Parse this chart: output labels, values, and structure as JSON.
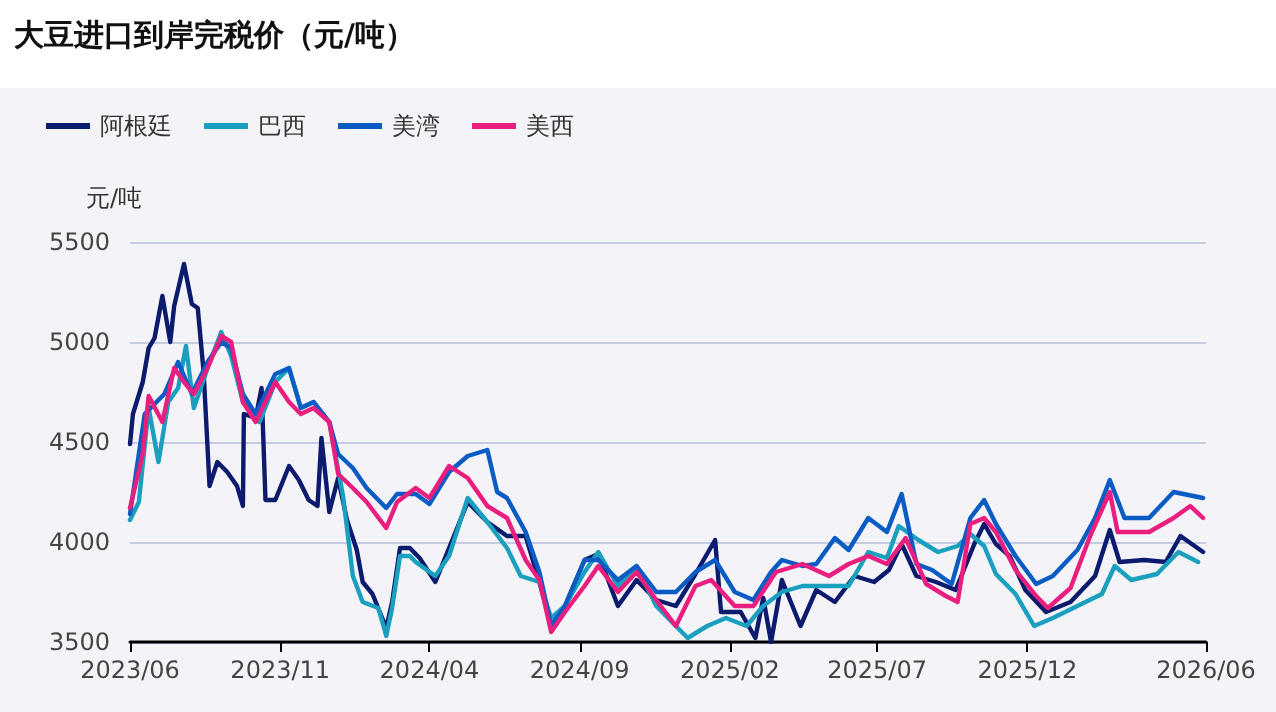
{
  "chart_data": {
    "type": "line",
    "title": "大豆进口到岸完税价（元/吨）",
    "ylabel": "元/吨",
    "xlim": [
      "2023-06-01",
      "2026-06-01"
    ],
    "xticks": [
      {
        "value": "2023-06-01",
        "label": "2023/06"
      },
      {
        "value": "2023-11-01",
        "label": "2023/11"
      },
      {
        "value": "2024-04-01",
        "label": "2024/04"
      },
      {
        "value": "2024-09-01",
        "label": "2024/09"
      },
      {
        "value": "2025-02-01",
        "label": "2025/02"
      },
      {
        "value": "2025-07-01",
        "label": "2025/07"
      },
      {
        "value": "2025-12-01",
        "label": "2025/12"
      },
      {
        "value": "2026-06-01",
        "label": "2026/06"
      }
    ],
    "ylim": [
      3500,
      5500
    ],
    "yticks": [
      3500,
      4000,
      4500,
      5000,
      5500
    ],
    "grid": "y",
    "legend": "top left",
    "marker": "none",
    "series": [
      {
        "name": "阿根廷",
        "color": "#0d1b6e",
        "x": [
          "2023-06-01",
          "2023-06-04",
          "2023-06-14",
          "2023-06-20",
          "2023-06-26",
          "2023-07-04",
          "2023-07-12",
          "2023-07-16",
          "2023-07-26",
          "2023-08-03",
          "2023-08-09",
          "2023-08-15",
          "2023-08-21",
          "2023-08-29",
          "2023-09-08",
          "2023-09-18",
          "2023-09-24",
          "2023-09-25",
          "2023-10-07",
          "2023-10-13",
          "2023-10-17",
          "2023-10-27",
          "2023-11-10",
          "2023-11-20",
          "2023-11-30",
          "2023-12-09",
          "2023-12-13",
          "2023-12-21",
          "2023-12-30",
          "2024-01-08",
          "2024-01-18",
          "2024-01-24",
          "2024-02-03",
          "2024-02-17",
          "2024-02-23",
          "2024-03-02",
          "2024-03-12",
          "2024-03-22",
          "2024-04-07",
          "2024-04-21",
          "2024-05-10",
          "2024-05-30",
          "2024-06-19",
          "2024-07-08",
          "2024-07-22",
          "2024-08-03",
          "2024-08-17",
          "2024-09-06",
          "2024-09-20",
          "2024-10-10",
          "2024-10-29",
          "2024-11-18",
          "2024-12-08",
          "2024-12-28",
          "2025-01-17",
          "2025-01-23",
          "2025-02-12",
          "2025-02-27",
          "2025-03-07",
          "2025-03-15",
          "2025-03-26",
          "2025-04-14",
          "2025-04-30",
          "2025-05-19",
          "2025-06-08",
          "2025-06-28",
          "2025-07-13",
          "2025-07-26",
          "2025-08-10",
          "2025-08-30",
          "2025-09-19",
          "2025-10-08",
          "2025-10-18",
          "2025-10-30",
          "2025-11-13",
          "2025-11-29",
          "2025-12-20",
          "2026-01-14",
          "2026-02-08",
          "2026-02-23",
          "2026-03-05",
          "2026-03-30",
          "2026-04-21",
          "2026-05-06",
          "2026-05-29"
        ],
        "values": [
          4490,
          4640,
          4800,
          4970,
          5020,
          5230,
          5000,
          5180,
          5390,
          5190,
          5170,
          4850,
          4280,
          4400,
          4350,
          4280,
          4180,
          4640,
          4620,
          4770,
          4210,
          4210,
          4380,
          4310,
          4210,
          4180,
          4520,
          4150,
          4320,
          4110,
          3960,
          3800,
          3740,
          3570,
          3700,
          3970,
          3970,
          3920,
          3800,
          3970,
          4200,
          4100,
          4030,
          4030,
          3800,
          3580,
          3680,
          3910,
          3940,
          3680,
          3810,
          3710,
          3680,
          3840,
          4010,
          3650,
          3650,
          3520,
          3720,
          3500,
          3810,
          3580,
          3760,
          3700,
          3830,
          3800,
          3860,
          3990,
          3830,
          3800,
          3760,
          3990,
          4090,
          3990,
          3930,
          3760,
          3650,
          3700,
          3830,
          4060,
          3900,
          3910,
          3900,
          4030,
          3950
        ]
      },
      {
        "name": "巴西",
        "color": "#1a9fbf",
        "x": [
          "2023-06-01",
          "2023-06-10",
          "2023-06-20",
          "2023-06-30",
          "2023-07-10",
          "2023-07-20",
          "2023-07-28",
          "2023-08-05",
          "2023-08-19",
          "2023-09-02",
          "2023-09-12",
          "2023-09-24",
          "2023-10-11",
          "2023-10-27",
          "2023-11-10",
          "2023-11-22",
          "2023-12-05",
          "2023-12-21",
          "2024-01-04",
          "2024-01-14",
          "2024-01-24",
          "2024-02-09",
          "2024-02-17",
          "2024-02-23",
          "2024-03-02",
          "2024-03-12",
          "2024-03-18",
          "2024-04-07",
          "2024-04-21",
          "2024-05-10",
          "2024-05-30",
          "2024-06-19",
          "2024-07-03",
          "2024-07-22",
          "2024-08-03",
          "2024-08-17",
          "2024-09-06",
          "2024-09-20",
          "2024-10-10",
          "2024-10-29",
          "2024-11-18",
          "2024-12-08",
          "2024-12-20",
          "2025-01-09",
          "2025-01-28",
          "2025-02-18",
          "2025-03-07",
          "2025-03-26",
          "2025-04-16",
          "2025-05-13",
          "2025-06-02",
          "2025-06-22",
          "2025-07-11",
          "2025-07-23",
          "2025-08-12",
          "2025-09-01",
          "2025-09-21",
          "2025-10-04",
          "2025-10-18",
          "2025-10-30",
          "2025-11-19",
          "2025-12-08",
          "2025-12-27",
          "2026-01-21",
          "2026-02-15",
          "2026-02-28",
          "2026-03-17",
          "2026-04-12",
          "2026-05-04",
          "2026-05-24"
        ],
        "values": [
          4110,
          4200,
          4670,
          4400,
          4700,
          4770,
          4980,
          4670,
          4870,
          5050,
          4930,
          4700,
          4600,
          4800,
          4870,
          4670,
          4700,
          4600,
          4230,
          3830,
          3700,
          3670,
          3530,
          3670,
          3930,
          3930,
          3900,
          3830,
          3930,
          4220,
          4100,
          3970,
          3830,
          3800,
          3620,
          3680,
          3850,
          3950,
          3780,
          3880,
          3680,
          3580,
          3520,
          3580,
          3620,
          3580,
          3680,
          3750,
          3780,
          3780,
          3780,
          3950,
          3920,
          4080,
          4010,
          3950,
          3980,
          4040,
          3980,
          3840,
          3740,
          3580,
          3620,
          3680,
          3740,
          3880,
          3810,
          3840,
          3950,
          3900
        ]
      },
      {
        "name": "美湾",
        "color": "#0a5cc4",
        "x": [
          "2023-06-01",
          "2023-06-16",
          "2023-07-06",
          "2023-07-20",
          "2023-08-03",
          "2023-08-19",
          "2023-09-02",
          "2023-09-12",
          "2023-09-24",
          "2023-10-07",
          "2023-10-27",
          "2023-11-10",
          "2023-11-22",
          "2023-12-05",
          "2023-12-21",
          "2023-12-30",
          "2024-01-14",
          "2024-01-28",
          "2024-02-17",
          "2024-02-28",
          "2024-03-18",
          "2024-04-01",
          "2024-04-21",
          "2024-05-10",
          "2024-05-30",
          "2024-06-09",
          "2024-06-19",
          "2024-07-08",
          "2024-07-22",
          "2024-08-03",
          "2024-08-17",
          "2024-09-06",
          "2024-09-20",
          "2024-10-10",
          "2024-10-29",
          "2024-11-18",
          "2024-12-08",
          "2024-12-28",
          "2025-01-17",
          "2025-02-06",
          "2025-02-25",
          "2025-03-15",
          "2025-03-26",
          "2025-04-16",
          "2025-04-30",
          "2025-05-19",
          "2025-06-02",
          "2025-06-22",
          "2025-07-11",
          "2025-07-26",
          "2025-08-10",
          "2025-08-26",
          "2025-09-15",
          "2025-10-04",
          "2025-10-18",
          "2025-10-30",
          "2025-11-19",
          "2025-12-10",
          "2025-12-27",
          "2026-01-21",
          "2026-02-08",
          "2026-02-23",
          "2026-03-10",
          "2026-04-04",
          "2026-04-29",
          "2026-05-29"
        ],
        "values": [
          4140,
          4640,
          4740,
          4900,
          4740,
          4900,
          5000,
          4970,
          4740,
          4640,
          4840,
          4870,
          4670,
          4700,
          4600,
          4440,
          4370,
          4270,
          4170,
          4240,
          4240,
          4190,
          4350,
          4430,
          4460,
          4250,
          4220,
          4050,
          3850,
          3580,
          3680,
          3910,
          3910,
          3810,
          3880,
          3750,
          3750,
          3850,
          3910,
          3750,
          3710,
          3850,
          3910,
          3880,
          3890,
          4020,
          3960,
          4120,
          4050,
          4240,
          3890,
          3860,
          3790,
          4120,
          4210,
          4090,
          3930,
          3790,
          3830,
          3960,
          4120,
          4310,
          4120,
          4120,
          4250,
          4220
        ]
      },
      {
        "name": "美西",
        "color": "#e91e7e",
        "x": [
          "2023-06-01",
          "2023-06-14",
          "2023-06-20",
          "2023-07-04",
          "2023-07-16",
          "2023-07-26",
          "2023-08-05",
          "2023-08-19",
          "2023-09-02",
          "2023-09-12",
          "2023-09-24",
          "2023-10-07",
          "2023-10-27",
          "2023-11-10",
          "2023-11-22",
          "2023-12-05",
          "2023-12-21",
          "2023-12-30",
          "2024-01-14",
          "2024-01-28",
          "2024-02-17",
          "2024-02-28",
          "2024-03-18",
          "2024-04-01",
          "2024-04-21",
          "2024-05-10",
          "2024-05-30",
          "2024-06-19",
          "2024-07-08",
          "2024-07-22",
          "2024-08-03",
          "2024-08-17",
          "2024-09-06",
          "2024-09-20",
          "2024-10-10",
          "2024-10-29",
          "2024-11-18",
          "2024-12-08",
          "2024-12-28",
          "2025-01-13",
          "2025-02-06",
          "2025-02-25",
          "2025-03-20",
          "2025-04-16",
          "2025-05-13",
          "2025-06-02",
          "2025-06-22",
          "2025-07-11",
          "2025-07-30",
          "2025-08-20",
          "2025-09-09",
          "2025-09-21",
          "2025-10-04",
          "2025-10-18",
          "2025-10-30",
          "2025-11-19",
          "2025-12-10",
          "2025-12-22",
          "2026-01-14",
          "2026-02-03",
          "2026-02-23",
          "2026-03-03",
          "2026-04-04",
          "2026-04-29",
          "2026-05-16",
          "2026-05-29"
        ],
        "values": [
          4170,
          4440,
          4730,
          4600,
          4870,
          4800,
          4740,
          4870,
          5030,
          5000,
          4700,
          4600,
          4800,
          4700,
          4640,
          4670,
          4600,
          4340,
          4270,
          4200,
          4070,
          4200,
          4270,
          4220,
          4380,
          4320,
          4180,
          4120,
          3910,
          3810,
          3550,
          3650,
          3780,
          3880,
          3750,
          3850,
          3710,
          3580,
          3780,
          3810,
          3680,
          3680,
          3850,
          3890,
          3830,
          3890,
          3930,
          3890,
          4020,
          3790,
          3730,
          3700,
          4090,
          4120,
          4050,
          3860,
          3730,
          3670,
          3770,
          4030,
          4250,
          4050,
          4050,
          4120,
          4180,
          4120
        ]
      }
    ]
  }
}
